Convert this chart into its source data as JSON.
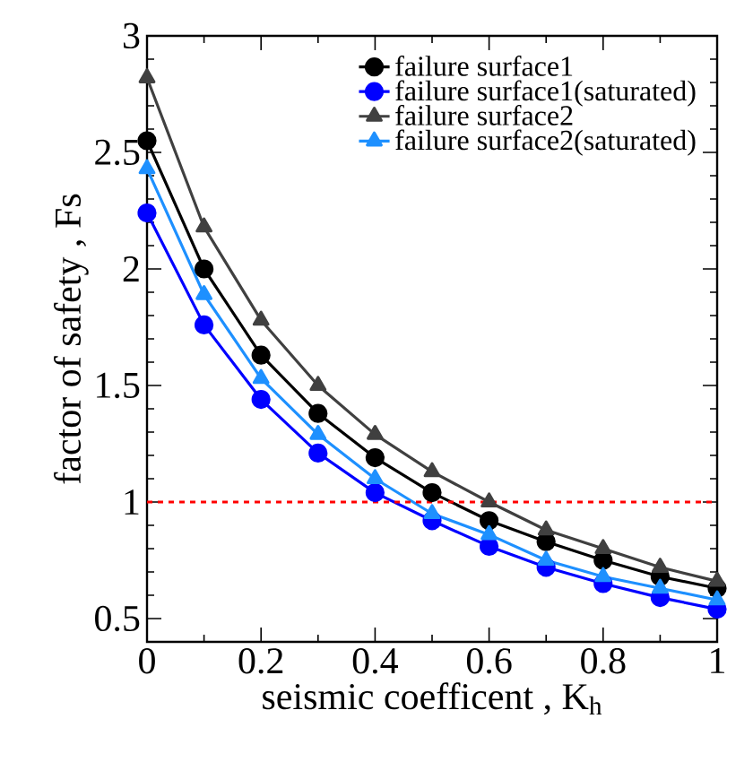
{
  "chart_data": {
    "type": "line",
    "xlabel": "seismic coefficent , K$_{h}$",
    "ylabel": "factor of safety , Fs",
    "x": [
      0,
      0.1,
      0.2,
      0.3,
      0.4,
      0.5,
      0.6,
      0.7,
      0.8,
      0.9,
      1.0
    ],
    "series": [
      {
        "name": "failure surface1",
        "color": "#000000",
        "marker": "circle",
        "values": [
          2.55,
          2.0,
          1.63,
          1.38,
          1.19,
          1.04,
          0.92,
          0.83,
          0.75,
          0.68,
          0.63
        ]
      },
      {
        "name": "failure surface1(saturated)",
        "color": "#0000ff",
        "marker": "circle",
        "values": [
          2.24,
          1.76,
          1.44,
          1.21,
          1.04,
          0.92,
          0.81,
          0.72,
          0.65,
          0.59,
          0.54
        ]
      },
      {
        "name": "failure surface2",
        "color": "#404040",
        "marker": "triangle",
        "values": [
          2.82,
          2.18,
          1.78,
          1.5,
          1.29,
          1.13,
          1.0,
          0.88,
          0.8,
          0.72,
          0.66
        ]
      },
      {
        "name": "failure surface2(saturated)",
        "color": "#1e90ff",
        "marker": "triangle",
        "values": [
          2.43,
          1.89,
          1.53,
          1.29,
          1.1,
          0.95,
          0.86,
          0.75,
          0.68,
          0.63,
          0.58
        ]
      }
    ],
    "xlim": [
      0,
      1
    ],
    "ylim": [
      0.4,
      3
    ],
    "xticks": [
      0,
      0.2,
      0.4,
      0.6,
      0.8,
      1
    ],
    "yticks": [
      0.5,
      1,
      1.5,
      2,
      2.5,
      3
    ],
    "ref_lines": [
      {
        "axis": "y",
        "value": 1,
        "color": "#ff0000",
        "line_style": "dashed"
      }
    ],
    "legend": "top right",
    "grid": false,
    "line_style": "solid"
  }
}
